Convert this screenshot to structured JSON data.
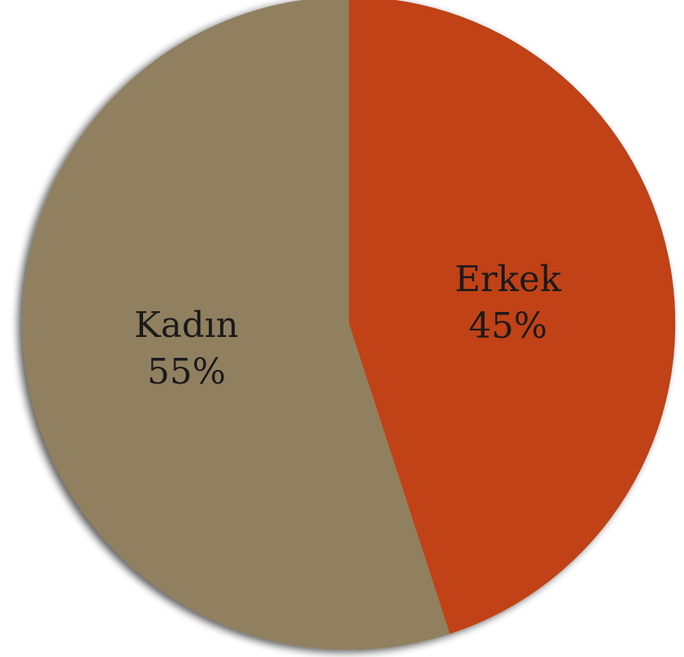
{
  "chart_data": {
    "type": "pie",
    "title": "",
    "slices": [
      {
        "label": "Erkek",
        "value": 45,
        "value_label": "45%",
        "color": "#c04215"
      },
      {
        "label": "Kadın",
        "value": 55,
        "value_label": "55%",
        "color": "#908060"
      }
    ],
    "start": "12 o'clock",
    "direction": "clockwise",
    "legend": "none",
    "labels_inside_slices": true
  }
}
